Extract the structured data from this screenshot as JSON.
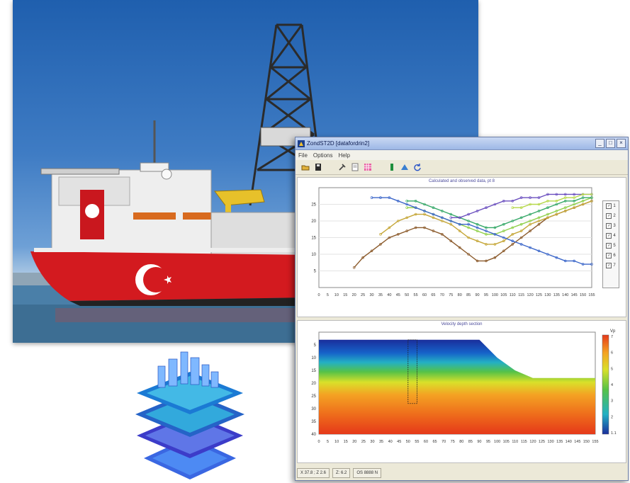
{
  "window": {
    "title": "ZondST2D [datafordrin2]",
    "menus": [
      "File",
      "Options",
      "Help"
    ],
    "minimize": "_",
    "maximize": "□",
    "close": "×"
  },
  "top_plot": {
    "title": "Calculated and observed data, pt 8",
    "legend": [
      "1",
      "2",
      "3",
      "4",
      "5",
      "6",
      "7"
    ]
  },
  "bottom_plot": {
    "title": "Velocity depth section",
    "colorbar_unit": "Vp",
    "colorbar_ticks": [
      "7",
      "6",
      "5",
      "4",
      "3",
      "2",
      "1.1"
    ]
  },
  "status_bar": {
    "coords": "X  37.8 ; Z  2.6",
    "value": "Z: 6.2",
    "extra": "OS  8888 N"
  },
  "chart_data": [
    {
      "type": "line",
      "title": "Calculated and observed data, pt 8",
      "x": [
        0,
        5,
        10,
        15,
        20,
        25,
        30,
        35,
        40,
        45,
        50,
        55,
        60,
        65,
        70,
        75,
        80,
        85,
        90,
        95,
        100,
        105,
        110,
        115,
        120,
        125,
        130,
        135,
        140,
        145,
        150,
        155
      ],
      "ylim": [
        0,
        30
      ],
      "yticks": [
        5,
        10,
        15,
        20,
        25
      ],
      "series": [
        {
          "name": "1",
          "values": [
            null,
            null,
            null,
            null,
            6,
            9,
            11,
            13,
            15,
            16,
            17,
            18,
            18,
            17,
            16,
            14,
            12,
            10,
            8,
            8,
            9,
            11,
            13,
            15,
            17,
            19,
            21,
            22,
            23,
            24,
            25,
            26
          ]
        },
        {
          "name": "2",
          "values": [
            null,
            null,
            null,
            null,
            null,
            null,
            null,
            16,
            18,
            20,
            21,
            22,
            22,
            21,
            20,
            19,
            17,
            15,
            14,
            13,
            13,
            14,
            16,
            17,
            19,
            20,
            21,
            22,
            23,
            24,
            25,
            26
          ]
        },
        {
          "name": "3",
          "values": [
            null,
            null,
            null,
            null,
            null,
            null,
            null,
            null,
            null,
            null,
            24,
            24,
            23,
            22,
            21,
            20,
            19,
            18,
            17,
            16,
            16,
            17,
            18,
            19,
            20,
            21,
            22,
            23,
            24,
            25,
            26,
            27
          ]
        },
        {
          "name": "4",
          "values": [
            null,
            null,
            null,
            null,
            null,
            null,
            null,
            null,
            null,
            null,
            26,
            26,
            25,
            24,
            23,
            22,
            21,
            20,
            19,
            18,
            18,
            19,
            20,
            21,
            22,
            23,
            24,
            25,
            26,
            26,
            27,
            27
          ]
        },
        {
          "name": "5",
          "values": [
            null,
            null,
            null,
            null,
            null,
            null,
            27,
            27,
            27,
            26,
            25,
            24,
            23,
            22,
            21,
            20,
            19,
            19,
            18,
            17,
            16,
            15,
            14,
            13,
            12,
            11,
            10,
            9,
            8,
            8,
            7,
            7
          ]
        },
        {
          "name": "6",
          "values": [
            null,
            null,
            null,
            null,
            null,
            null,
            null,
            null,
            null,
            null,
            null,
            null,
            null,
            null,
            null,
            21,
            21,
            22,
            23,
            24,
            25,
            26,
            26,
            27,
            27,
            27,
            28,
            28,
            28,
            28,
            28,
            28
          ]
        },
        {
          "name": "7",
          "values": [
            null,
            null,
            null,
            null,
            null,
            null,
            null,
            null,
            null,
            null,
            null,
            null,
            null,
            null,
            null,
            null,
            null,
            null,
            null,
            null,
            null,
            null,
            24,
            24,
            25,
            25,
            26,
            26,
            27,
            27,
            28,
            28
          ]
        }
      ],
      "xticks": [
        "0",
        "5",
        "10",
        "15",
        "20",
        "25",
        "30",
        "35",
        "40",
        "45",
        "50",
        "55",
        "60",
        "65",
        "70",
        "75",
        "80",
        "85",
        "90",
        "95",
        "100",
        "105",
        "110",
        "115",
        "120",
        "125",
        "130",
        "135",
        "140",
        "145",
        "150",
        "155"
      ]
    },
    {
      "type": "heatmap",
      "title": "Velocity depth section",
      "x": [
        0,
        10,
        20,
        30,
        40,
        50,
        60,
        70,
        80,
        90,
        100,
        110,
        120,
        130,
        140,
        150,
        155
      ],
      "ylim": [
        0,
        40
      ],
      "yticks": [
        "5",
        "10",
        "15",
        "20",
        "25",
        "30",
        "35",
        "40"
      ],
      "surface_depth": [
        3,
        3,
        3,
        3,
        3,
        3,
        3,
        3,
        3,
        3,
        10,
        15,
        18,
        18,
        18,
        18,
        18
      ],
      "xticks": [
        "0",
        "5",
        "10",
        "15",
        "20",
        "25",
        "30",
        "35",
        "40",
        "45",
        "50",
        "55",
        "60",
        "65",
        "70",
        "75",
        "80",
        "85",
        "90",
        "95",
        "100",
        "105",
        "110",
        "115",
        "120",
        "125",
        "130",
        "135",
        "140",
        "145",
        "150",
        "155"
      ]
    }
  ]
}
